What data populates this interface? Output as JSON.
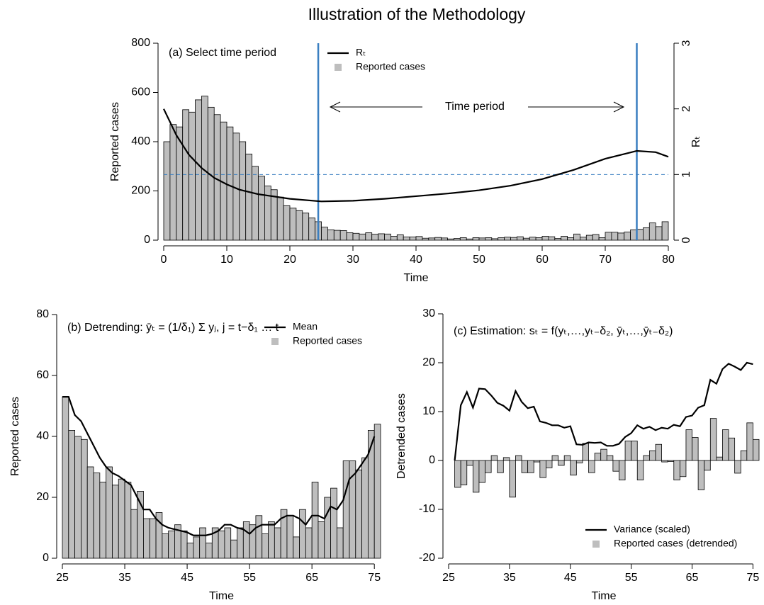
{
  "title": "Illustration of the Methodology",
  "chart_data": [
    {
      "type": "combo",
      "label": "(a) Select time period",
      "xlabel": "Time",
      "ylabel": "Reported cases",
      "y2label": "Rₜ",
      "annotation": "Time period",
      "x": [
        0,
        1,
        2,
        3,
        4,
        5,
        6,
        7,
        8,
        9,
        10,
        11,
        12,
        13,
        14,
        15,
        16,
        17,
        18,
        19,
        20,
        21,
        22,
        23,
        24,
        25,
        26,
        27,
        28,
        29,
        30,
        31,
        32,
        33,
        34,
        35,
        36,
        37,
        38,
        39,
        40,
        41,
        42,
        43,
        44,
        45,
        46,
        47,
        48,
        49,
        50,
        51,
        52,
        53,
        54,
        55,
        56,
        57,
        58,
        59,
        60,
        61,
        62,
        63,
        64,
        65,
        66,
        67,
        68,
        69,
        70,
        71,
        72,
        73,
        74,
        75,
        76,
        77,
        78,
        79
      ],
      "xlim": [
        0,
        80
      ],
      "xticks": [
        0,
        10,
        20,
        30,
        40,
        50,
        60,
        70,
        80
      ],
      "ylim": [
        0,
        800
      ],
      "yticks": [
        0,
        200,
        400,
        600,
        800
      ],
      "y2lim": [
        0,
        3
      ],
      "y2ticks": [
        0,
        1,
        2,
        3
      ],
      "vlines": [
        24.5,
        75
      ],
      "vline_color": "#3a7fc1",
      "hline": {
        "value": 1,
        "axis": "y2",
        "color": "#3a7fc1"
      },
      "series": [
        {
          "name": "Rₜ",
          "type": "line",
          "color": "#000000",
          "axis": "y2",
          "x": [
            0,
            2,
            4,
            6,
            8,
            10,
            12,
            15,
            20,
            25,
            30,
            35,
            40,
            45,
            50,
            55,
            60,
            65,
            70,
            75,
            78,
            80
          ],
          "values": [
            2.0,
            1.6,
            1.3,
            1.1,
            0.95,
            0.85,
            0.77,
            0.7,
            0.63,
            0.59,
            0.6,
            0.63,
            0.67,
            0.71,
            0.76,
            0.83,
            0.93,
            1.07,
            1.24,
            1.36,
            1.34,
            1.27
          ]
        },
        {
          "name": "Reported cases",
          "type": "bar",
          "color": "#bebebe",
          "values": [
            400,
            470,
            460,
            530,
            520,
            570,
            585,
            540,
            510,
            480,
            460,
            435,
            400,
            350,
            300,
            260,
            220,
            205,
            175,
            140,
            130,
            120,
            110,
            90,
            75,
            53,
            42,
            40,
            39,
            30,
            28,
            25,
            30,
            24,
            26,
            25,
            16,
            22,
            13,
            13,
            15,
            8,
            9,
            11,
            9,
            5,
            7,
            10,
            5,
            10,
            9,
            10,
            6,
            10,
            12,
            11,
            14,
            8,
            12,
            10,
            16,
            14,
            7,
            16,
            10,
            25,
            12,
            20,
            23,
            10,
            32,
            32,
            29,
            33,
            42,
            44,
            50,
            70,
            55,
            75
          ]
        }
      ]
    },
    {
      "type": "combo",
      "label": "(b) Detrending: ȳₜ = (1/δ₁) Σ yⱼ, j = t−δ₁ … t",
      "xlabel": "Time",
      "ylabel": "Reported cases",
      "x": [
        25,
        26,
        27,
        28,
        29,
        30,
        31,
        32,
        33,
        34,
        35,
        36,
        37,
        38,
        39,
        40,
        41,
        42,
        43,
        44,
        45,
        46,
        47,
        48,
        49,
        50,
        51,
        52,
        53,
        54,
        55,
        56,
        57,
        58,
        59,
        60,
        61,
        62,
        63,
        64,
        65,
        66,
        67,
        68,
        69,
        70,
        71,
        72,
        73,
        74,
        75
      ],
      "xlim": [
        25,
        76
      ],
      "xticks": [
        25,
        35,
        45,
        55,
        65,
        75
      ],
      "ylim": [
        0,
        80
      ],
      "yticks": [
        0,
        20,
        40,
        60,
        80
      ],
      "series": [
        {
          "name": "Mean",
          "type": "line",
          "color": "#000000",
          "values": [
            53,
            53,
            47,
            45,
            41,
            37,
            33,
            30,
            28,
            27,
            25.5,
            24,
            20,
            16,
            16,
            13,
            11,
            10,
            9.5,
            9,
            8.5,
            7.5,
            7.5,
            7.5,
            8,
            9,
            11,
            11,
            10,
            9.5,
            8,
            10,
            11,
            11,
            11,
            13,
            14,
            14,
            13,
            11,
            14,
            14,
            13,
            17,
            16,
            19,
            26,
            28,
            31,
            34,
            40
          ]
        },
        {
          "name": "Reported cases",
          "type": "bar",
          "color": "#bebebe",
          "values": [
            53,
            42,
            40,
            39,
            30,
            28,
            25,
            30,
            24,
            26,
            25,
            16,
            22,
            13,
            13,
            15,
            8,
            9,
            11,
            9,
            5,
            7,
            10,
            5,
            10,
            9,
            10,
            6,
            10,
            12,
            11,
            14,
            8,
            12,
            10,
            16,
            14,
            7,
            16,
            10,
            25,
            12,
            20,
            23,
            10,
            32,
            32,
            29,
            33,
            42,
            44
          ]
        }
      ]
    },
    {
      "type": "combo",
      "label": "(c) Estimation: sₜ = f(yₜ,…,yₜ₋δ₂, ȳₜ,…,ȳₜ₋δ₂)",
      "xlabel": "Time",
      "ylabel": "Detrended cases",
      "x": [
        26,
        27,
        28,
        29,
        30,
        31,
        32,
        33,
        34,
        35,
        36,
        37,
        38,
        39,
        40,
        41,
        42,
        43,
        44,
        45,
        46,
        47,
        48,
        49,
        50,
        51,
        52,
        53,
        54,
        55,
        56,
        57,
        58,
        59,
        60,
        61,
        62,
        63,
        64,
        65,
        66,
        67,
        68,
        69,
        70,
        71,
        72,
        73,
        74,
        75
      ],
      "xlim": [
        25,
        76
      ],
      "xticks": [
        25,
        35,
        45,
        55,
        65,
        75
      ],
      "ylim": [
        -20,
        30
      ],
      "yticks": [
        -20,
        -10,
        0,
        10,
        20,
        30
      ],
      "series": [
        {
          "name": "Variance (scaled)",
          "type": "line",
          "color": "#000000",
          "values": [
            0,
            11.3,
            14,
            10.8,
            14.7,
            14.6,
            13.3,
            11.8,
            11.2,
            10.2,
            14.2,
            12,
            10.7,
            11,
            8,
            7.7,
            7.2,
            7.2,
            6.7,
            7,
            3.3,
            3.2,
            3.7,
            3.6,
            3.7,
            3,
            3,
            3.4,
            4.8,
            5.6,
            7.2,
            6.5,
            6.9,
            6.2,
            6.7,
            6.5,
            7.3,
            7,
            8.9,
            9.2,
            10.8,
            11.3,
            16.5,
            15.7,
            18.7,
            19.8,
            19.2,
            18.5,
            20,
            19.7
          ]
        },
        {
          "name": "Reported cases (detrended)",
          "type": "bar",
          "color": "#bebebe",
          "values": [
            -5.5,
            -5,
            -1,
            -6.5,
            -4.5,
            -2.5,
            1,
            -2.5,
            0.6,
            -7.5,
            1,
            -2.5,
            -2.5,
            -0.3,
            -3.5,
            -1.5,
            1,
            -1,
            1,
            -3,
            -0.5,
            3.5,
            -2.5,
            1.5,
            2.3,
            1,
            -2.2,
            -4,
            4,
            4,
            -4,
            1,
            2,
            3.3,
            -0.3,
            -0.2,
            -4,
            -3.3,
            6.3,
            4.7,
            -6,
            -2,
            8.6,
            0.7,
            6.3,
            4.6,
            -2.6,
            2,
            7.7,
            4.3
          ]
        }
      ]
    }
  ]
}
